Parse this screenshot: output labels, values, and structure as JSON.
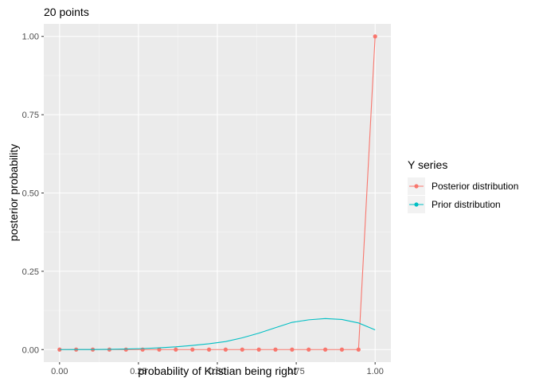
{
  "chart_data": {
    "type": "line",
    "title": "20 points",
    "xlabel": "probability of Kristian being right",
    "ylabel": "posterior probability",
    "xlim": [
      -0.05,
      1.05
    ],
    "ylim": [
      -0.04,
      1.04
    ],
    "x_ticks": [
      "0.00",
      "0.25",
      "0.50",
      "0.75",
      "1.00"
    ],
    "y_ticks": [
      "0.00",
      "0.25",
      "0.50",
      "0.75",
      "1.00"
    ],
    "grid": true,
    "legend": {
      "title": "Y series",
      "placement": "right",
      "entries": [
        "Posterior distribution",
        "Prior distribution"
      ]
    },
    "series": [
      {
        "name": "Posterior distribution",
        "color": "#F8766D",
        "markers": true,
        "x": [
          0,
          0.0526,
          0.1053,
          0.1579,
          0.2105,
          0.2632,
          0.3158,
          0.3684,
          0.4211,
          0.4737,
          0.5263,
          0.5789,
          0.6316,
          0.6842,
          0.7368,
          0.7895,
          0.8421,
          0.8947,
          0.9474,
          1.0
        ],
        "y": [
          0,
          0,
          0,
          0,
          0,
          0,
          0,
          0,
          0,
          0,
          0,
          0,
          0,
          0,
          0,
          0,
          0,
          0,
          0,
          1.0
        ]
      },
      {
        "name": "Prior distribution",
        "color": "#00BFC4",
        "markers": false,
        "x": [
          0,
          0.0526,
          0.1053,
          0.1579,
          0.2105,
          0.2632,
          0.3158,
          0.3684,
          0.4211,
          0.4737,
          0.5263,
          0.5789,
          0.6316,
          0.6842,
          0.7368,
          0.7895,
          0.8421,
          0.8947,
          0.9474,
          1.0
        ],
        "y": [
          0,
          0.0001,
          0.0003,
          0.0008,
          0.0017,
          0.0032,
          0.0055,
          0.0087,
          0.0131,
          0.0187,
          0.0256,
          0.0375,
          0.0525,
          0.07,
          0.087,
          0.095,
          0.099,
          0.096,
          0.085,
          0.063
        ]
      }
    ]
  }
}
